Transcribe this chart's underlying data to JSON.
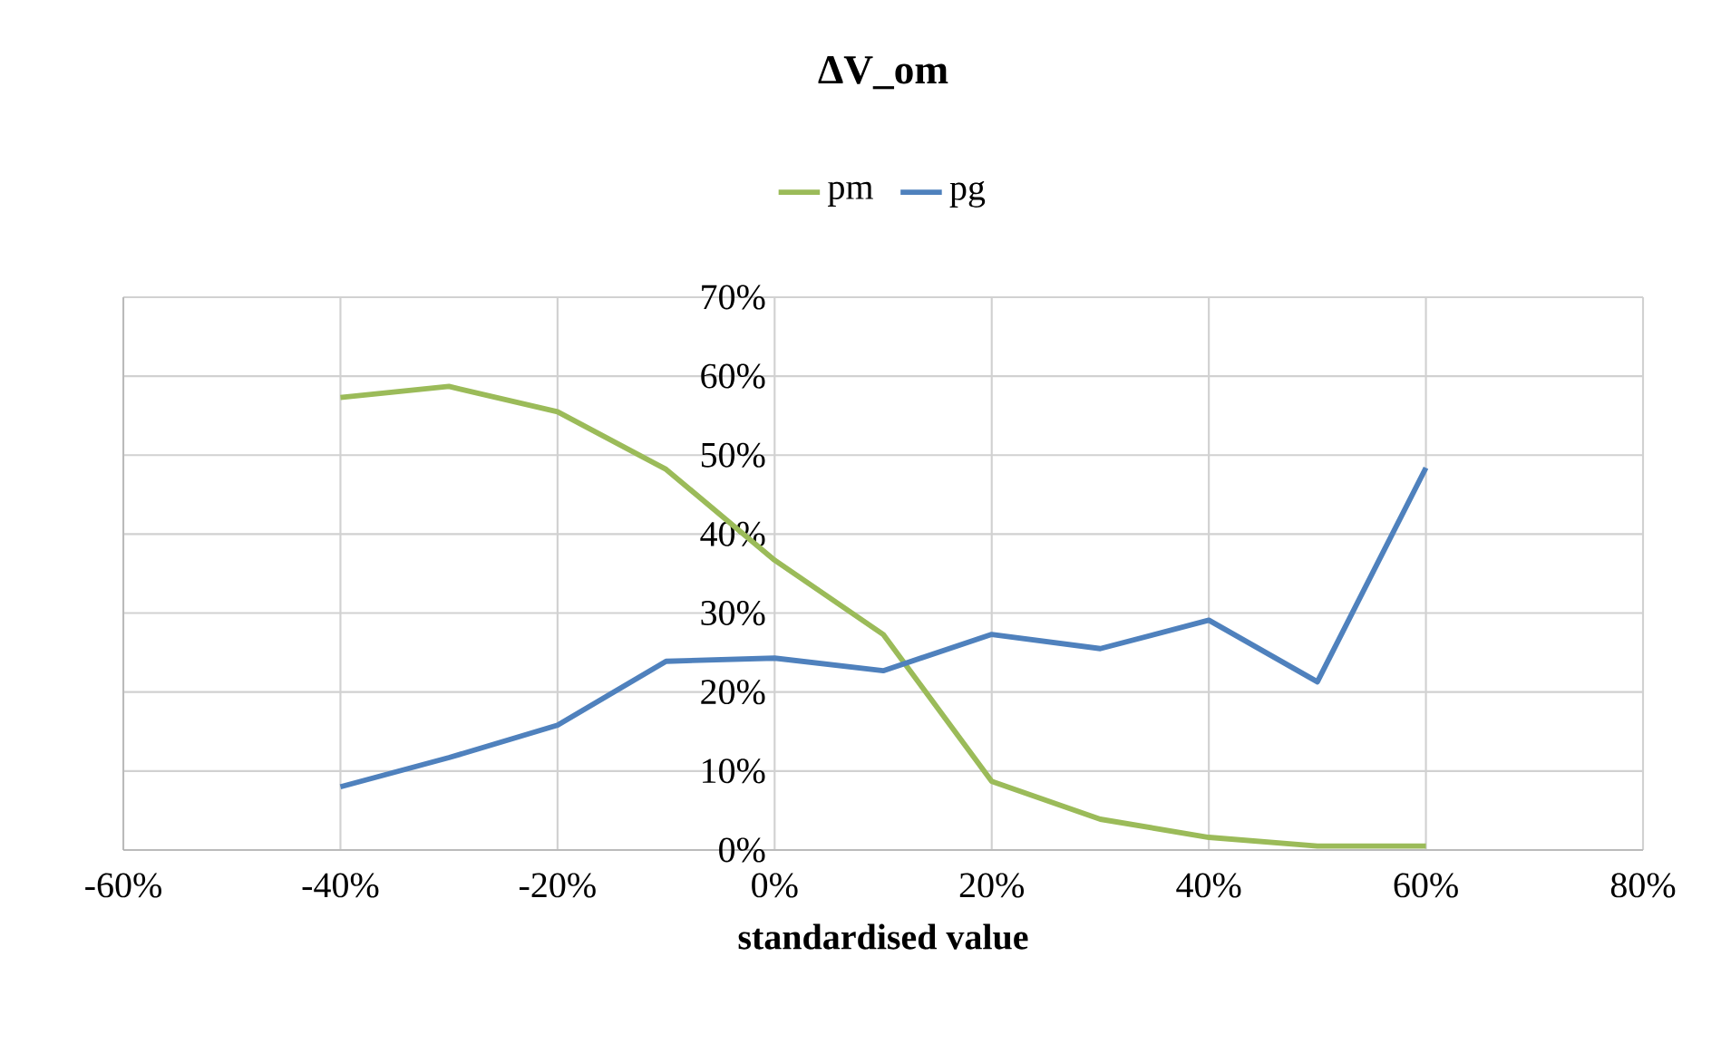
{
  "chart_data": {
    "type": "line",
    "title": "ΔV_om",
    "xlabel": "standardised value",
    "x": [
      -40,
      -30,
      -20,
      -10,
      0,
      10,
      20,
      30,
      40,
      50,
      60
    ],
    "series": [
      {
        "name": "pm",
        "color": "#9bbb59",
        "values": [
          57.3,
          58.7,
          55.5,
          48.2,
          36.7,
          27.3,
          8.7,
          3.9,
          1.6,
          0.5,
          0.5
        ]
      },
      {
        "name": "pg",
        "color": "#4f81bd",
        "values": [
          8.0,
          11.7,
          15.8,
          23.9,
          24.3,
          22.7,
          27.3,
          25.5,
          29.1,
          21.3,
          48.4
        ]
      }
    ],
    "xlim": [
      -60,
      80
    ],
    "xticks": [
      {
        "value": -60,
        "label": "-60%"
      },
      {
        "value": -40,
        "label": "-40%"
      },
      {
        "value": -20,
        "label": "-20%"
      },
      {
        "value": 0,
        "label": "0%"
      },
      {
        "value": 20,
        "label": "20%"
      },
      {
        "value": 40,
        "label": "40%"
      },
      {
        "value": 60,
        "label": "60%"
      },
      {
        "value": 80,
        "label": "80%"
      }
    ],
    "ylim": [
      0,
      70
    ],
    "yticks": [
      {
        "value": 0,
        "label": "0%"
      },
      {
        "value": 10,
        "label": "10%"
      },
      {
        "value": 20,
        "label": "20%"
      },
      {
        "value": 30,
        "label": "30%"
      },
      {
        "value": 40,
        "label": "40%"
      },
      {
        "value": 50,
        "label": "50%"
      },
      {
        "value": 60,
        "label": "60%"
      },
      {
        "value": 70,
        "label": "70%"
      }
    ],
    "grid": true,
    "legend": "top"
  }
}
